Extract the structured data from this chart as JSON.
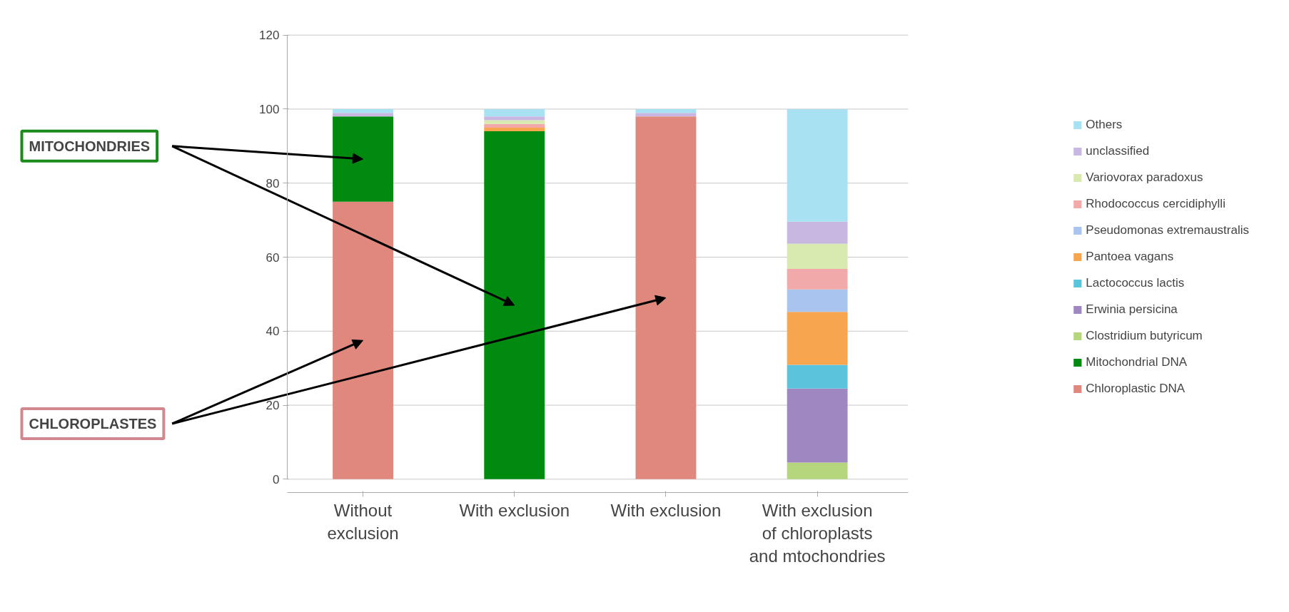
{
  "chart_data": {
    "type": "bar",
    "stacked": true,
    "categories": [
      "Without exclusion",
      "With exclusion",
      "With exclusion",
      "With exclusion of chloroplasts and mtochondries"
    ],
    "series": [
      {
        "name": "Chloroplastic DNA",
        "color": "#e0887e",
        "values": [
          75,
          0,
          98,
          0
        ]
      },
      {
        "name": "Mitochondrial DNA",
        "color": "#008a10",
        "values": [
          23,
          94,
          0,
          0
        ]
      },
      {
        "name": "Clostridium butyricum",
        "color": "#b5d67c",
        "values": [
          0,
          0,
          0,
          4.5
        ]
      },
      {
        "name": "Erwinia persicina",
        "color": "#9f88c2",
        "values": [
          0,
          0,
          0,
          20
        ]
      },
      {
        "name": "Lactococcus lactis",
        "color": "#5bc4dc",
        "values": [
          0,
          0,
          0,
          6.4
        ]
      },
      {
        "name": "Pantoea vagans",
        "color": "#f8a550",
        "values": [
          0,
          1,
          0,
          14.3
        ]
      },
      {
        "name": "Pseudomonas extremaustralis",
        "color": "#a9c4ee",
        "values": [
          0,
          0,
          0,
          6.1
        ]
      },
      {
        "name": "Rhodococcus cercidiphylli",
        "color": "#f2a9a9",
        "values": [
          0,
          1,
          0,
          5.5
        ]
      },
      {
        "name": "Variovorax paradoxus",
        "color": "#d8eab0",
        "values": [
          0,
          1,
          0,
          6.8
        ]
      },
      {
        "name": "unclassified",
        "color": "#c8b7e0",
        "values": [
          1,
          1,
          1,
          6
        ]
      },
      {
        "name": "Others",
        "color": "#a8e2f2",
        "values": [
          1,
          2,
          1,
          30.4
        ]
      }
    ],
    "ylim": [
      0,
      120
    ],
    "yticks": [
      0,
      20,
      40,
      60,
      80,
      100,
      120
    ],
    "grid": "y",
    "legend": "right",
    "annotations": [
      "MITOCHONDRIES",
      "CHLOROPLASTES"
    ]
  }
}
